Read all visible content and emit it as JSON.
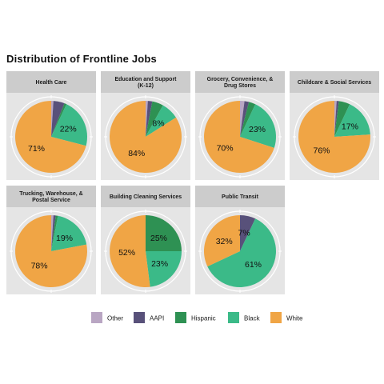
{
  "title": "Distribution of Frontline Jobs",
  "chart_data": {
    "type": "pie",
    "title": "Distribution of Frontline Jobs",
    "categories": [
      "Other",
      "AAPI",
      "Hispanic",
      "Black",
      "White"
    ],
    "colors": {
      "Other": "#b9a6c3",
      "AAPI": "#58517a",
      "Hispanic": "#2e9153",
      "Black": "#3bba88",
      "White": "#f0a545"
    },
    "legend_position": "bottom",
    "panel_background": "#e5e5e5",
    "strip_background": "#cccccc",
    "panels": [
      {
        "name": "Health Care",
        "values": {
          "Other": 1,
          "AAPI": 5,
          "Hispanic": 1,
          "Black": 22,
          "White": 71
        },
        "labels": [
          "22%",
          "71%"
        ]
      },
      {
        "name": "Education and Support (K-12)",
        "values": {
          "Other": 1,
          "AAPI": 2,
          "Hispanic": 5,
          "Black": 8,
          "White": 84
        },
        "labels": [
          "8%",
          "84%"
        ]
      },
      {
        "name": "Grocery, Convenience, & Drug Stores",
        "values": {
          "Other": 2,
          "AAPI": 2,
          "Hispanic": 3,
          "Black": 23,
          "White": 70
        },
        "labels": [
          "23%",
          "70%"
        ]
      },
      {
        "name": "Childcare & Social Services",
        "values": {
          "Other": 1,
          "AAPI": 1,
          "Hispanic": 5,
          "Black": 17,
          "White": 76
        },
        "labels": [
          "17%",
          "76%"
        ]
      },
      {
        "name": "Trucking, Warehouse, & Postal Service",
        "values": {
          "Other": 1,
          "AAPI": 1,
          "Hispanic": 1,
          "Black": 19,
          "White": 78
        },
        "labels": [
          "19%",
          "78%"
        ]
      },
      {
        "name": "Building Cleaning Services",
        "values": {
          "Other": 0,
          "AAPI": 0,
          "Hispanic": 25,
          "Black": 23,
          "White": 52
        },
        "labels": [
          "25%",
          "23%",
          "52%"
        ]
      },
      {
        "name": "Public Transit",
        "values": {
          "Other": 0,
          "AAPI": 7,
          "Hispanic": 0,
          "Black": 61,
          "White": 32
        },
        "labels": [
          "7%",
          "61%",
          "32%"
        ]
      }
    ],
    "legend": [
      "Other",
      "AAPI",
      "Hispanic",
      "Black",
      "White"
    ]
  }
}
